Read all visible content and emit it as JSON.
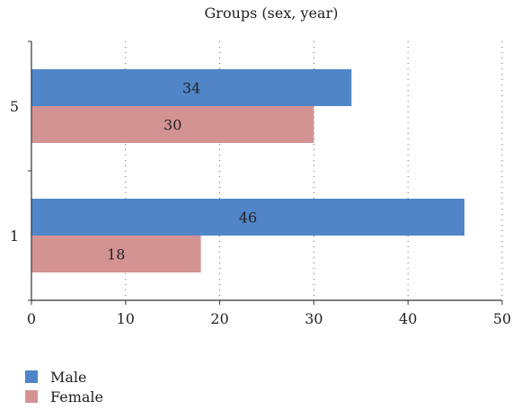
{
  "chart_data": {
    "type": "bar",
    "orientation": "horizontal",
    "title": "Groups (sex, year)",
    "xlabel": "",
    "ylabel": "",
    "categories": [
      "5",
      "1"
    ],
    "xlim": [
      0,
      50
    ],
    "xticks": [
      0,
      10,
      20,
      30,
      40,
      50
    ],
    "grid": "vertical-dotted",
    "series": [
      {
        "name": "Male",
        "values": [
          34,
          46
        ],
        "color": "#5086c8"
      },
      {
        "name": "Female",
        "values": [
          30,
          18
        ],
        "color": "#d49393"
      }
    ],
    "legend": {
      "position": "bottom-left"
    }
  }
}
